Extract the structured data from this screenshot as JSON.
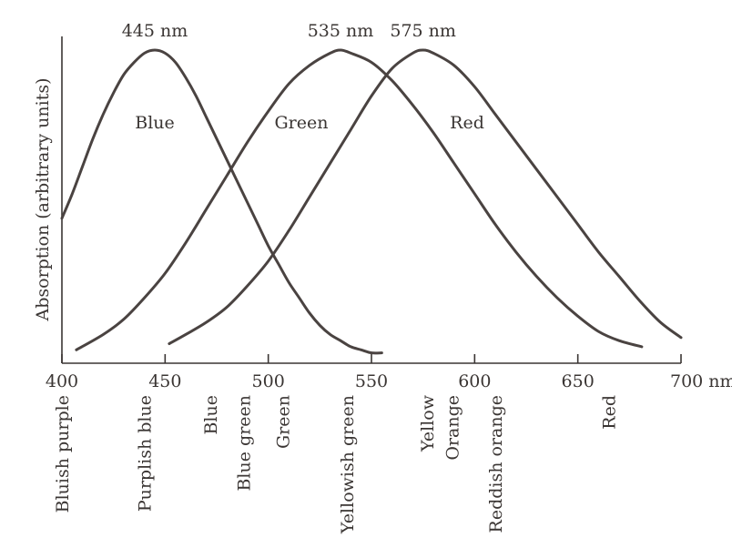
{
  "chart_data": {
    "type": "line",
    "title": "",
    "xlabel": "",
    "ylabel": "Absorption (arbitrary units)",
    "x_unit": "nm",
    "xlim": [
      400,
      700
    ],
    "ylim": [
      0,
      1
    ],
    "grid": false,
    "x_ticks": [
      400,
      450,
      500,
      550,
      600,
      650,
      700
    ],
    "x_tick_labels": [
      "400",
      "450",
      "500",
      "550",
      "600",
      "650",
      "700 nm"
    ],
    "series": [
      {
        "name": "Blue",
        "peak_label": "445 nm",
        "x": [
          400,
          405,
          410,
          415,
          420,
          425,
          430,
          435,
          440,
          445,
          450,
          455,
          460,
          465,
          470,
          475,
          480,
          485,
          490,
          495,
          500,
          505,
          510,
          515,
          520,
          525,
          530,
          535,
          540,
          545,
          550,
          555
        ],
        "y": [
          0.45,
          0.53,
          0.62,
          0.71,
          0.79,
          0.86,
          0.92,
          0.96,
          0.99,
          1.0,
          0.99,
          0.96,
          0.91,
          0.85,
          0.78,
          0.71,
          0.64,
          0.57,
          0.5,
          0.43,
          0.36,
          0.3,
          0.24,
          0.19,
          0.14,
          0.1,
          0.07,
          0.05,
          0.03,
          0.02,
          0.01,
          0.01
        ]
      },
      {
        "name": "Green",
        "peak_label": "535 nm",
        "x": [
          407,
          420,
          430,
          440,
          450,
          460,
          470,
          480,
          490,
          500,
          510,
          520,
          530,
          535,
          540,
          550,
          560,
          570,
          580,
          590,
          600,
          610,
          620,
          630,
          640,
          650,
          660,
          670,
          681
        ],
        "y": [
          0.02,
          0.07,
          0.12,
          0.19,
          0.27,
          0.37,
          0.48,
          0.59,
          0.7,
          0.8,
          0.89,
          0.95,
          0.99,
          1.0,
          0.99,
          0.96,
          0.9,
          0.82,
          0.73,
          0.63,
          0.53,
          0.43,
          0.34,
          0.26,
          0.19,
          0.13,
          0.08,
          0.05,
          0.03
        ]
      },
      {
        "name": "Red",
        "peak_label": "575 nm",
        "x": [
          452,
          460,
          470,
          480,
          490,
          500,
          510,
          520,
          530,
          540,
          550,
          560,
          570,
          575,
          580,
          590,
          600,
          610,
          620,
          630,
          640,
          650,
          660,
          670,
          680,
          690,
          700
        ],
        "y": [
          0.04,
          0.07,
          0.11,
          0.16,
          0.23,
          0.31,
          0.41,
          0.52,
          0.63,
          0.74,
          0.85,
          0.94,
          0.99,
          1.0,
          0.99,
          0.95,
          0.88,
          0.79,
          0.7,
          0.61,
          0.52,
          0.43,
          0.34,
          0.26,
          0.18,
          0.11,
          0.06
        ]
      }
    ],
    "color_names": [
      {
        "label": "Bluish purple",
        "x": 400
      },
      {
        "label": "Purplish blue",
        "x": 440
      },
      {
        "label": "Blue",
        "x": 472
      },
      {
        "label": "Blue green",
        "x": 488
      },
      {
        "label": "Green",
        "x": 507
      },
      {
        "label": "Yellowish green",
        "x": 538
      },
      {
        "label": "Yellow",
        "x": 577
      },
      {
        "label": "Orange",
        "x": 589
      },
      {
        "label": "Reddish orange",
        "x": 610
      },
      {
        "label": "Red",
        "x": 665
      }
    ],
    "line_color": "#4a4341",
    "text_color": "#3a3533"
  }
}
